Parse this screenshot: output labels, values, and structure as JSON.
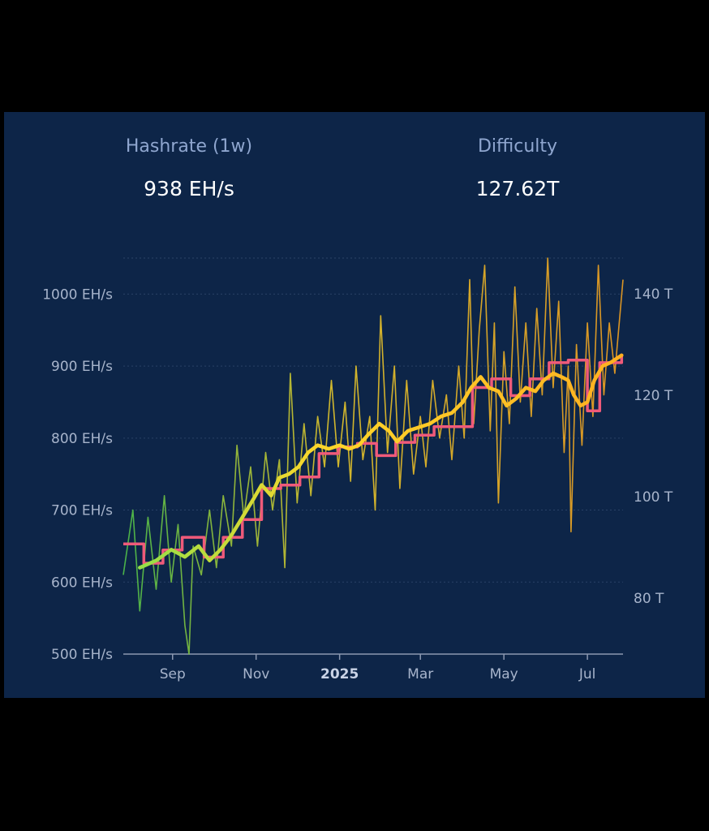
{
  "stats": {
    "hashrate": {
      "label": "Hashrate (1w)",
      "value": "938 EH/s"
    },
    "difficulty": {
      "label": "Difficulty",
      "value": "127.62T"
    }
  },
  "colors": {
    "background": "#0d2548",
    "hashrate_low": "#4fc24a",
    "hashrate_mid": "#e6c72a",
    "hashrate_high": "#f0a020",
    "difficulty": "#ef5a7a",
    "grid": "#2a4266",
    "axis_text": "#a7b4cb"
  },
  "chart_data": {
    "type": "line",
    "x_range": [
      "2024-07-27",
      "2025-07-27"
    ],
    "left_axis": {
      "ticks": [
        500,
        600,
        700,
        800,
        900,
        1000
      ],
      "tick_labels": [
        "500 EH/s",
        "600 EH/s",
        "700 EH/s",
        "800 EH/s",
        "900 EH/s",
        "1000 EH/s"
      ],
      "ylim": [
        500,
        1050
      ]
    },
    "right_axis": {
      "ticks": [
        80,
        100,
        120,
        140
      ],
      "tick_labels": [
        "80 T",
        "100 T",
        "120 T",
        "140 T"
      ],
      "ylim": [
        69,
        147
      ]
    },
    "x_ticks": [
      {
        "date": "2024-09-01",
        "label": "Sep",
        "bold": false
      },
      {
        "date": "2024-11-01",
        "label": "Nov",
        "bold": false
      },
      {
        "date": "2025-01-01",
        "label": "2025",
        "bold": true
      },
      {
        "date": "2025-03-01",
        "label": "Mar",
        "bold": false
      },
      {
        "date": "2025-05-01",
        "label": "May",
        "bold": false
      },
      {
        "date": "2025-07-01",
        "label": "Jul",
        "bold": false
      }
    ],
    "series": [
      {
        "axis": "left",
        "style": "daily",
        "points": [
          [
            "2024-07-27",
            610
          ],
          [
            "2024-08-03",
            700
          ],
          [
            "2024-08-08",
            560
          ],
          [
            "2024-08-14",
            690
          ],
          [
            "2024-08-20",
            590
          ],
          [
            "2024-08-26",
            720
          ],
          [
            "2024-08-31",
            600
          ],
          [
            "2024-09-05",
            680
          ],
          [
            "2024-09-10",
            540
          ],
          [
            "2024-09-13",
            500
          ],
          [
            "2024-09-16",
            650
          ],
          [
            "2024-09-22",
            610
          ],
          [
            "2024-09-28",
            700
          ],
          [
            "2024-10-03",
            620
          ],
          [
            "2024-10-08",
            720
          ],
          [
            "2024-10-14",
            650
          ],
          [
            "2024-10-18",
            790
          ],
          [
            "2024-10-23",
            690
          ],
          [
            "2024-10-28",
            760
          ],
          [
            "2024-11-02",
            650
          ],
          [
            "2024-11-08",
            780
          ],
          [
            "2024-11-13",
            700
          ],
          [
            "2024-11-18",
            770
          ],
          [
            "2024-11-22",
            620
          ],
          [
            "2024-11-26",
            890
          ],
          [
            "2024-12-01",
            710
          ],
          [
            "2024-12-06",
            820
          ],
          [
            "2024-12-11",
            720
          ],
          [
            "2024-12-16",
            830
          ],
          [
            "2024-12-21",
            760
          ],
          [
            "2024-12-26",
            880
          ],
          [
            "2024-12-31",
            760
          ],
          [
            "2025-01-05",
            850
          ],
          [
            "2025-01-09",
            740
          ],
          [
            "2025-01-13",
            900
          ],
          [
            "2025-01-18",
            770
          ],
          [
            "2025-01-23",
            830
          ],
          [
            "2025-01-27",
            700
          ],
          [
            "2025-01-31",
            970
          ],
          [
            "2025-02-05",
            780
          ],
          [
            "2025-02-10",
            900
          ],
          [
            "2025-02-14",
            730
          ],
          [
            "2025-02-19",
            880
          ],
          [
            "2025-02-24",
            750
          ],
          [
            "2025-03-01",
            830
          ],
          [
            "2025-03-05",
            760
          ],
          [
            "2025-03-10",
            880
          ],
          [
            "2025-03-15",
            800
          ],
          [
            "2025-03-20",
            860
          ],
          [
            "2025-03-24",
            770
          ],
          [
            "2025-03-29",
            900
          ],
          [
            "2025-04-02",
            800
          ],
          [
            "2025-04-06",
            1020
          ],
          [
            "2025-04-09",
            820
          ],
          [
            "2025-04-13",
            950
          ],
          [
            "2025-04-17",
            1040
          ],
          [
            "2025-04-21",
            810
          ],
          [
            "2025-04-24",
            960
          ],
          [
            "2025-04-27",
            710
          ],
          [
            "2025-05-01",
            920
          ],
          [
            "2025-05-05",
            820
          ],
          [
            "2025-05-09",
            1010
          ],
          [
            "2025-05-13",
            850
          ],
          [
            "2025-05-17",
            960
          ],
          [
            "2025-05-21",
            830
          ],
          [
            "2025-05-25",
            980
          ],
          [
            "2025-05-29",
            860
          ],
          [
            "2025-06-02",
            1050
          ],
          [
            "2025-06-06",
            870
          ],
          [
            "2025-06-10",
            990
          ],
          [
            "2025-06-14",
            780
          ],
          [
            "2025-06-17",
            900
          ],
          [
            "2025-06-19",
            670
          ],
          [
            "2025-06-23",
            930
          ],
          [
            "2025-06-27",
            790
          ],
          [
            "2025-07-01",
            960
          ],
          [
            "2025-07-05",
            830
          ],
          [
            "2025-07-09",
            1040
          ],
          [
            "2025-07-13",
            860
          ],
          [
            "2025-07-17",
            960
          ],
          [
            "2025-07-21",
            890
          ],
          [
            "2025-07-27",
            1020
          ]
        ]
      },
      {
        "axis": "left",
        "style": "moving-average",
        "points": [
          [
            "2024-08-08",
            620
          ],
          [
            "2024-08-20",
            630
          ],
          [
            "2024-08-31",
            645
          ],
          [
            "2024-09-10",
            635
          ],
          [
            "2024-09-20",
            650
          ],
          [
            "2024-09-28",
            630
          ],
          [
            "2024-10-06",
            645
          ],
          [
            "2024-10-14",
            665
          ],
          [
            "2024-10-22",
            690
          ],
          [
            "2024-10-30",
            715
          ],
          [
            "2024-11-05",
            735
          ],
          [
            "2024-11-12",
            720
          ],
          [
            "2024-11-18",
            745
          ],
          [
            "2024-11-25",
            750
          ],
          [
            "2024-12-02",
            760
          ],
          [
            "2024-12-09",
            780
          ],
          [
            "2024-12-16",
            790
          ],
          [
            "2024-12-24",
            785
          ],
          [
            "2025-01-01",
            790
          ],
          [
            "2025-01-08",
            785
          ],
          [
            "2025-01-15",
            790
          ],
          [
            "2025-01-22",
            805
          ],
          [
            "2025-01-30",
            820
          ],
          [
            "2025-02-06",
            810
          ],
          [
            "2025-02-12",
            795
          ],
          [
            "2025-02-20",
            810
          ],
          [
            "2025-02-28",
            815
          ],
          [
            "2025-03-08",
            820
          ],
          [
            "2025-03-16",
            830
          ],
          [
            "2025-03-24",
            835
          ],
          [
            "2025-04-01",
            850
          ],
          [
            "2025-04-07",
            870
          ],
          [
            "2025-04-14",
            885
          ],
          [
            "2025-04-20",
            870
          ],
          [
            "2025-04-27",
            865
          ],
          [
            "2025-05-03",
            845
          ],
          [
            "2025-05-10",
            855
          ],
          [
            "2025-05-17",
            870
          ],
          [
            "2025-05-24",
            865
          ],
          [
            "2025-05-30",
            880
          ],
          [
            "2025-06-06",
            890
          ],
          [
            "2025-06-12",
            885
          ],
          [
            "2025-06-17",
            880
          ],
          [
            "2025-06-21",
            860
          ],
          [
            "2025-06-26",
            845
          ],
          [
            "2025-07-01",
            850
          ],
          [
            "2025-07-06",
            880
          ],
          [
            "2025-07-12",
            900
          ],
          [
            "2025-07-18",
            905
          ],
          [
            "2025-07-26",
            915
          ]
        ]
      },
      {
        "axis": "right",
        "style": "step",
        "points": [
          [
            "2024-07-27",
            90.7
          ],
          [
            "2024-08-11",
            86.9
          ],
          [
            "2024-08-25",
            89.5
          ],
          [
            "2024-09-08",
            92.0
          ],
          [
            "2024-09-24",
            88.1
          ],
          [
            "2024-10-08",
            92.0
          ],
          [
            "2024-10-22",
            95.5
          ],
          [
            "2024-11-05",
            101.6
          ],
          [
            "2024-11-19",
            102.3
          ],
          [
            "2024-12-03",
            103.9
          ],
          [
            "2024-12-17",
            108.5
          ],
          [
            "2024-12-31",
            109.8
          ],
          [
            "2025-01-14",
            110.5
          ],
          [
            "2025-01-28",
            108.1
          ],
          [
            "2025-02-11",
            110.7
          ],
          [
            "2025-02-25",
            112.1
          ],
          [
            "2025-03-11",
            113.8
          ],
          [
            "2025-03-25",
            113.8
          ],
          [
            "2025-04-08",
            121.5
          ],
          [
            "2025-04-22",
            123.2
          ],
          [
            "2025-05-06",
            119.9
          ],
          [
            "2025-05-20",
            123.2
          ],
          [
            "2025-06-03",
            126.4
          ],
          [
            "2025-06-17",
            126.9
          ],
          [
            "2025-07-01",
            116.9
          ],
          [
            "2025-07-10",
            126.4
          ],
          [
            "2025-07-26",
            127.6
          ]
        ]
      }
    ]
  }
}
